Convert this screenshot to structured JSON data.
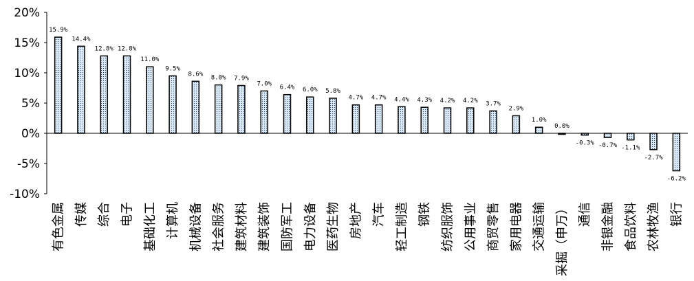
{
  "chart_data": {
    "type": "bar",
    "title": "",
    "xlabel": "",
    "ylabel": "",
    "ylim": [
      -10,
      20
    ],
    "yticks": [
      -10,
      -5,
      0,
      5,
      10,
      15,
      20
    ],
    "ytick_labels": [
      "-10%",
      "-5%",
      "0%",
      "5%",
      "10%",
      "15%",
      "20%"
    ],
    "grid": false,
    "legend": "none",
    "bar_fill": "#dbe8f6",
    "bar_pattern_color": "#1f3f66",
    "bar_stroke": "#000000",
    "categories": [
      "有色金属",
      "传媒",
      "综合",
      "电子",
      "基础化工",
      "计算机",
      "机械设备",
      "社会服务",
      "建筑材料",
      "建筑装饰",
      "国防军工",
      "电力设备",
      "医药生物",
      "房地产",
      "汽车",
      "轻工制造",
      "钢铁",
      "纺织服饰",
      "公用事业",
      "商贸零售",
      "家用电器",
      "交通运输",
      "采掘（申万）",
      "通信",
      "非银金融",
      "食品饮料",
      "农林牧渔",
      "银行"
    ],
    "values": [
      15.9,
      14.4,
      12.8,
      12.8,
      11.0,
      9.5,
      8.6,
      8.0,
      7.9,
      7.0,
      6.4,
      6.0,
      5.8,
      4.7,
      4.7,
      4.4,
      4.3,
      4.2,
      4.2,
      3.7,
      2.9,
      1.0,
      0.0,
      -0.3,
      -0.7,
      -1.1,
      -2.7,
      -6.2
    ],
    "data_labels": [
      "15.9%",
      "14.4%",
      "12.8%",
      "12.8%",
      "11.0%",
      "9.5%",
      "8.6%",
      "8.0%",
      "7.9%",
      "7.0%",
      "6.4%",
      "6.0%",
      "5.8%",
      "4.7%",
      "4.7%",
      "4.4%",
      "4.3%",
      "4.2%",
      "4.2%",
      "3.7%",
      "2.9%",
      "1.0%",
      "0.0%",
      "-0.3%",
      "-0.7%",
      "-1.1%",
      "-2.7%",
      "-6.2%"
    ]
  }
}
